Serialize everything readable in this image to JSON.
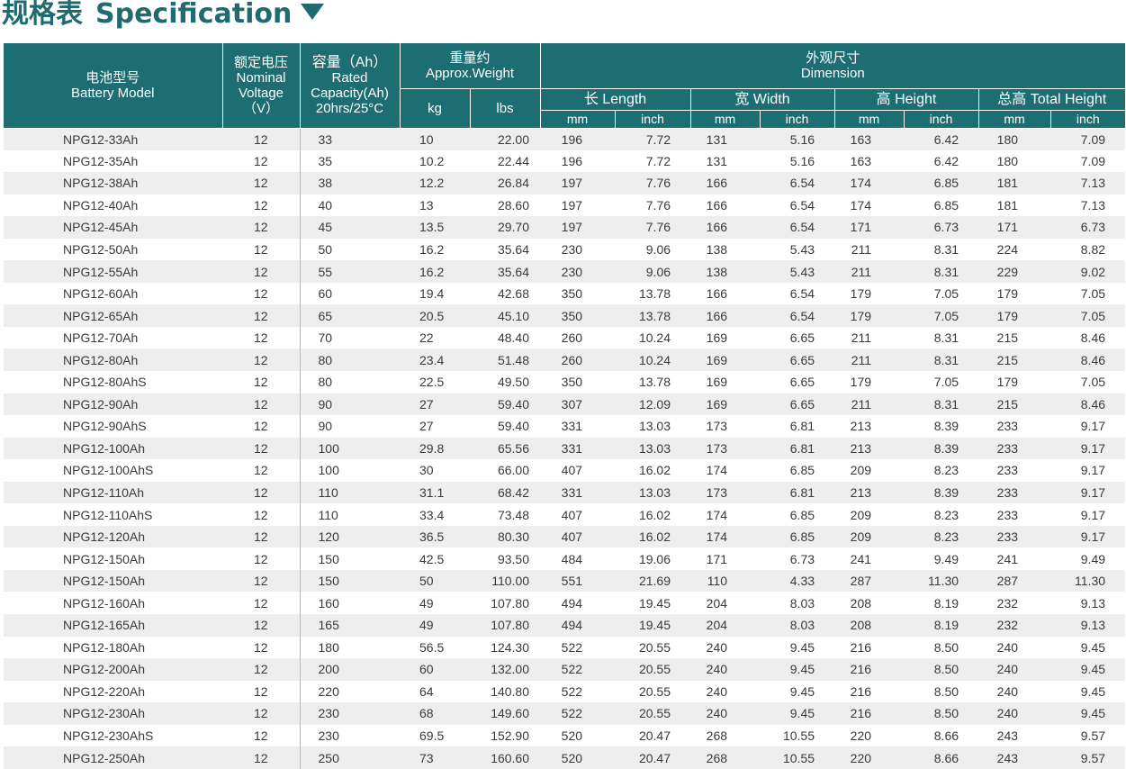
{
  "title": {
    "zh": "规格表",
    "en": "Specification"
  },
  "header": {
    "model_zh": "电池型号",
    "model_en": "Battery Model",
    "voltage_zh": "额定电压",
    "voltage_en": "Nominal Voltage",
    "voltage_unit": "（V）",
    "capacity_zh": "容量（Ah）",
    "capacity_en1": "Rated",
    "capacity_en2": "Capacity(Ah)",
    "capacity_en3": "20hrs/25°C",
    "weight_zh": "重量约",
    "weight_en": "Approx.Weight",
    "kg": "kg",
    "lbs": "lbs",
    "dimension_zh": "外观尺寸",
    "dimension_en": "Dimension",
    "length": "长 Length",
    "width": "宽 Width",
    "height": "高 Height",
    "total_height": "总高 Total Height",
    "mm": "mm",
    "inch": "inch"
  },
  "rows": [
    {
      "model": "NPG12-33Ah",
      "voltage": "12",
      "capacity": "33",
      "kg": "10",
      "lbs": "22.00",
      "len_mm": "196",
      "len_in": "7.72",
      "wid_mm": "131",
      "wid_in": "5.16",
      "hgt_mm": "163",
      "hgt_in": "6.42",
      "tot_mm": "180",
      "tot_in": "7.09"
    },
    {
      "model": "NPG12-35Ah",
      "voltage": "12",
      "capacity": "35",
      "kg": "10.2",
      "lbs": "22.44",
      "len_mm": "196",
      "len_in": "7.72",
      "wid_mm": "131",
      "wid_in": "5.16",
      "hgt_mm": "163",
      "hgt_in": "6.42",
      "tot_mm": "180",
      "tot_in": "7.09"
    },
    {
      "model": "NPG12-38Ah",
      "voltage": "12",
      "capacity": "38",
      "kg": "12.2",
      "lbs": "26.84",
      "len_mm": "197",
      "len_in": "7.76",
      "wid_mm": "166",
      "wid_in": "6.54",
      "hgt_mm": "174",
      "hgt_in": "6.85",
      "tot_mm": "181",
      "tot_in": "7.13"
    },
    {
      "model": "NPG12-40Ah",
      "voltage": "12",
      "capacity": "40",
      "kg": "13",
      "lbs": "28.60",
      "len_mm": "197",
      "len_in": "7.76",
      "wid_mm": "166",
      "wid_in": "6.54",
      "hgt_mm": "174",
      "hgt_in": "6.85",
      "tot_mm": "181",
      "tot_in": "7.13"
    },
    {
      "model": "NPG12-45Ah",
      "voltage": "12",
      "capacity": "45",
      "kg": "13.5",
      "lbs": "29.70",
      "len_mm": "197",
      "len_in": "7.76",
      "wid_mm": "166",
      "wid_in": "6.54",
      "hgt_mm": "171",
      "hgt_in": "6.73",
      "tot_mm": "171",
      "tot_in": "6.73"
    },
    {
      "model": "NPG12-50Ah",
      "voltage": "12",
      "capacity": "50",
      "kg": "16.2",
      "lbs": "35.64",
      "len_mm": "230",
      "len_in": "9.06",
      "wid_mm": "138",
      "wid_in": "5.43",
      "hgt_mm": "211",
      "hgt_in": "8.31",
      "tot_mm": "224",
      "tot_in": "8.82"
    },
    {
      "model": "NPG12-55Ah",
      "voltage": "12",
      "capacity": "55",
      "kg": "16.2",
      "lbs": "35.64",
      "len_mm": "230",
      "len_in": "9.06",
      "wid_mm": "138",
      "wid_in": "5.43",
      "hgt_mm": "211",
      "hgt_in": "8.31",
      "tot_mm": "229",
      "tot_in": "9.02"
    },
    {
      "model": "NPG12-60Ah",
      "voltage": "12",
      "capacity": "60",
      "kg": "19.4",
      "lbs": "42.68",
      "len_mm": "350",
      "len_in": "13.78",
      "wid_mm": "166",
      "wid_in": "6.54",
      "hgt_mm": "179",
      "hgt_in": "7.05",
      "tot_mm": "179",
      "tot_in": "7.05"
    },
    {
      "model": "NPG12-65Ah",
      "voltage": "12",
      "capacity": "65",
      "kg": "20.5",
      "lbs": "45.10",
      "len_mm": "350",
      "len_in": "13.78",
      "wid_mm": "166",
      "wid_in": "6.54",
      "hgt_mm": "179",
      "hgt_in": "7.05",
      "tot_mm": "179",
      "tot_in": "7.05"
    },
    {
      "model": "NPG12-70Ah",
      "voltage": "12",
      "capacity": "70",
      "kg": "22",
      "lbs": "48.40",
      "len_mm": "260",
      "len_in": "10.24",
      "wid_mm": "169",
      "wid_in": "6.65",
      "hgt_mm": "211",
      "hgt_in": "8.31",
      "tot_mm": "215",
      "tot_in": "8.46"
    },
    {
      "model": "NPG12-80Ah",
      "voltage": "12",
      "capacity": "80",
      "kg": "23.4",
      "lbs": "51.48",
      "len_mm": "260",
      "len_in": "10.24",
      "wid_mm": "169",
      "wid_in": "6.65",
      "hgt_mm": "211",
      "hgt_in": "8.31",
      "tot_mm": "215",
      "tot_in": "8.46"
    },
    {
      "model": "NPG12-80AhS",
      "voltage": "12",
      "capacity": "80",
      "kg": "22.5",
      "lbs": "49.50",
      "len_mm": "350",
      "len_in": "13.78",
      "wid_mm": "169",
      "wid_in": "6.65",
      "hgt_mm": "179",
      "hgt_in": "7.05",
      "tot_mm": "179",
      "tot_in": "7.05"
    },
    {
      "model": "NPG12-90Ah",
      "voltage": "12",
      "capacity": "90",
      "kg": "27",
      "lbs": "59.40",
      "len_mm": "307",
      "len_in": "12.09",
      "wid_mm": "169",
      "wid_in": "6.65",
      "hgt_mm": "211",
      "hgt_in": "8.31",
      "tot_mm": "215",
      "tot_in": "8.46"
    },
    {
      "model": "NPG12-90AhS",
      "voltage": "12",
      "capacity": "90",
      "kg": "27",
      "lbs": "59.40",
      "len_mm": "331",
      "len_in": "13.03",
      "wid_mm": "173",
      "wid_in": "6.81",
      "hgt_mm": "213",
      "hgt_in": "8.39",
      "tot_mm": "233",
      "tot_in": "9.17"
    },
    {
      "model": "NPG12-100Ah",
      "voltage": "12",
      "capacity": "100",
      "kg": "29.8",
      "lbs": "65.56",
      "len_mm": "331",
      "len_in": "13.03",
      "wid_mm": "173",
      "wid_in": "6.81",
      "hgt_mm": "213",
      "hgt_in": "8.39",
      "tot_mm": "233",
      "tot_in": "9.17"
    },
    {
      "model": "NPG12-100AhS",
      "voltage": "12",
      "capacity": "100",
      "kg": "30",
      "lbs": "66.00",
      "len_mm": "407",
      "len_in": "16.02",
      "wid_mm": "174",
      "wid_in": "6.85",
      "hgt_mm": "209",
      "hgt_in": "8.23",
      "tot_mm": "233",
      "tot_in": "9.17"
    },
    {
      "model": "NPG12-110Ah",
      "voltage": "12",
      "capacity": "110",
      "kg": "31.1",
      "lbs": "68.42",
      "len_mm": "331",
      "len_in": "13.03",
      "wid_mm": "173",
      "wid_in": "6.81",
      "hgt_mm": "213",
      "hgt_in": "8.39",
      "tot_mm": "233",
      "tot_in": "9.17"
    },
    {
      "model": "NPG12-110AhS",
      "voltage": "12",
      "capacity": "110",
      "kg": "33.4",
      "lbs": "73.48",
      "len_mm": "407",
      "len_in": "16.02",
      "wid_mm": "174",
      "wid_in": "6.85",
      "hgt_mm": "209",
      "hgt_in": "8.23",
      "tot_mm": "233",
      "tot_in": "9.17"
    },
    {
      "model": "NPG12-120Ah",
      "voltage": "12",
      "capacity": "120",
      "kg": "36.5",
      "lbs": "80.30",
      "len_mm": "407",
      "len_in": "16.02",
      "wid_mm": "174",
      "wid_in": "6.85",
      "hgt_mm": "209",
      "hgt_in": "8.23",
      "tot_mm": "233",
      "tot_in": "9.17"
    },
    {
      "model": "NPG12-150Ah",
      "voltage": "12",
      "capacity": "150",
      "kg": "42.5",
      "lbs": "93.50",
      "len_mm": "484",
      "len_in": "19.06",
      "wid_mm": "171",
      "wid_in": "6.73",
      "hgt_mm": "241",
      "hgt_in": "9.49",
      "tot_mm": "241",
      "tot_in": "9.49"
    },
    {
      "model": "NPG12-150Ah",
      "voltage": "12",
      "capacity": "150",
      "kg": "50",
      "lbs": "110.00",
      "len_mm": "551",
      "len_in": "21.69",
      "wid_mm": "110",
      "wid_in": "4.33",
      "hgt_mm": "287",
      "hgt_in": "11.30",
      "tot_mm": "287",
      "tot_in": "11.30"
    },
    {
      "model": "NPG12-160Ah",
      "voltage": "12",
      "capacity": "160",
      "kg": "49",
      "lbs": "107.80",
      "len_mm": "494",
      "len_in": "19.45",
      "wid_mm": "204",
      "wid_in": "8.03",
      "hgt_mm": "208",
      "hgt_in": "8.19",
      "tot_mm": "232",
      "tot_in": "9.13"
    },
    {
      "model": "NPG12-165Ah",
      "voltage": "12",
      "capacity": "165",
      "kg": "49",
      "lbs": "107.80",
      "len_mm": "494",
      "len_in": "19.45",
      "wid_mm": "204",
      "wid_in": "8.03",
      "hgt_mm": "208",
      "hgt_in": "8.19",
      "tot_mm": "232",
      "tot_in": "9.13"
    },
    {
      "model": "NPG12-180Ah",
      "voltage": "12",
      "capacity": "180",
      "kg": "56.5",
      "lbs": "124.30",
      "len_mm": "522",
      "len_in": "20.55",
      "wid_mm": "240",
      "wid_in": "9.45",
      "hgt_mm": "216",
      "hgt_in": "8.50",
      "tot_mm": "240",
      "tot_in": "9.45"
    },
    {
      "model": "NPG12-200Ah",
      "voltage": "12",
      "capacity": "200",
      "kg": "60",
      "lbs": "132.00",
      "len_mm": "522",
      "len_in": "20.55",
      "wid_mm": "240",
      "wid_in": "9.45",
      "hgt_mm": "216",
      "hgt_in": "8.50",
      "tot_mm": "240",
      "tot_in": "9.45"
    },
    {
      "model": "NPG12-220Ah",
      "voltage": "12",
      "capacity": "220",
      "kg": "64",
      "lbs": "140.80",
      "len_mm": "522",
      "len_in": "20.55",
      "wid_mm": "240",
      "wid_in": "9.45",
      "hgt_mm": "216",
      "hgt_in": "8.50",
      "tot_mm": "240",
      "tot_in": "9.45"
    },
    {
      "model": "NPG12-230Ah",
      "voltage": "12",
      "capacity": "230",
      "kg": "68",
      "lbs": "149.60",
      "len_mm": "522",
      "len_in": "20.55",
      "wid_mm": "240",
      "wid_in": "9.45",
      "hgt_mm": "216",
      "hgt_in": "8.50",
      "tot_mm": "240",
      "tot_in": "9.45"
    },
    {
      "model": "NPG12-230AhS",
      "voltage": "12",
      "capacity": "230",
      "kg": "69.5",
      "lbs": "152.90",
      "len_mm": "520",
      "len_in": "20.47",
      "wid_mm": "268",
      "wid_in": "10.55",
      "hgt_mm": "220",
      "hgt_in": "8.66",
      "tot_mm": "243",
      "tot_in": "9.57"
    },
    {
      "model": "NPG12-250Ah",
      "voltage": "12",
      "capacity": "250",
      "kg": "73",
      "lbs": "160.60",
      "len_mm": "520",
      "len_in": "20.47",
      "wid_mm": "268",
      "wid_in": "10.55",
      "hgt_mm": "220",
      "hgt_in": "8.66",
      "tot_mm": "243",
      "tot_in": "9.57"
    }
  ]
}
